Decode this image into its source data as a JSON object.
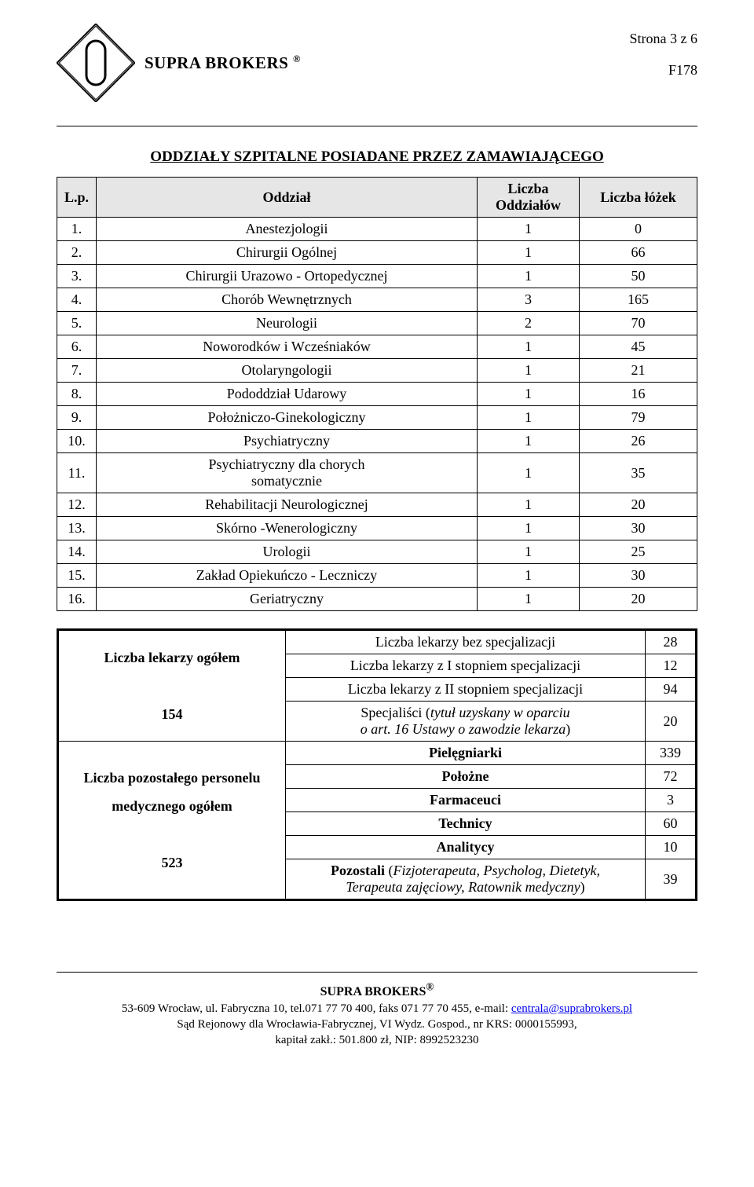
{
  "header": {
    "company_html": "SUPRA BROKERS <sup>®</sup>",
    "page_info": "Strona 3 z 6",
    "code": "F178"
  },
  "section_title": "ODDZIAŁY SZPITALNE POSIADANE PRZEZ ZAMAWIAJĄCEGO",
  "table1": {
    "headers": {
      "lp": "L.p.",
      "name": "Oddział",
      "count": "Liczba\nOddziałów",
      "beds": "Liczba łóżek"
    },
    "rows": [
      {
        "lp": "1.",
        "name": "Anestezjologii",
        "count": "1",
        "beds": "0"
      },
      {
        "lp": "2.",
        "name": "Chirurgii Ogólnej",
        "count": "1",
        "beds": "66"
      },
      {
        "lp": "3.",
        "name": "Chirurgii Urazowo - Ortopedycznej",
        "count": "1",
        "beds": "50"
      },
      {
        "lp": "4.",
        "name": "Chorób Wewnętrznych",
        "count": "3",
        "beds": "165"
      },
      {
        "lp": "5.",
        "name": "Neurologii",
        "count": "2",
        "beds": "70"
      },
      {
        "lp": "6.",
        "name": "Noworodków i Wcześniaków",
        "count": "1",
        "beds": "45"
      },
      {
        "lp": "7.",
        "name": "Otolaryngologii",
        "count": "1",
        "beds": "21"
      },
      {
        "lp": "8.",
        "name": "Pododdział Udarowy",
        "count": "1",
        "beds": "16"
      },
      {
        "lp": "9.",
        "name": "Położniczo-Ginekologiczny",
        "count": "1",
        "beds": "79"
      },
      {
        "lp": "10.",
        "name": "Psychiatryczny",
        "count": "1",
        "beds": "26"
      },
      {
        "lp": "11.",
        "name": "Psychiatryczny dla chorych\nsomatycznie",
        "count": "1",
        "beds": "35"
      },
      {
        "lp": "12.",
        "name": "Rehabilitacji Neurologicznej",
        "count": "1",
        "beds": "20"
      },
      {
        "lp": "13.",
        "name": "Skórno -Wenerologiczny",
        "count": "1",
        "beds": "30"
      },
      {
        "lp": "14.",
        "name": "Urologii",
        "count": "1",
        "beds": "25"
      },
      {
        "lp": "15.",
        "name": "Zakład Opiekuńczo - Leczniczy",
        "count": "1",
        "beds": "30"
      },
      {
        "lp": "16.",
        "name": "Geriatryczny",
        "count": "1",
        "beds": "20"
      }
    ]
  },
  "table2": {
    "group1": {
      "left_html": "Liczba lekarzy ogółem<br><br>154",
      "rows": [
        {
          "label": "Liczba lekarzy bez specjalizacji",
          "val": "28"
        },
        {
          "label": "Liczba lekarzy z I stopniem specjalizacji",
          "val": "12"
        },
        {
          "label": "Liczba lekarzy z II stopniem specjalizacji",
          "val": "94"
        },
        {
          "label_html": "Specjaliści (<span class=\"italic\">tytuł uzyskany w oparciu<br>o art. 16 Ustawy o zawodzie lekarza</span>)",
          "val": "20"
        }
      ]
    },
    "group2": {
      "left_html": "Liczba pozostałego personelu<br>medycznego ogółem<br><br>523",
      "rows": [
        {
          "label_html": "<b>Pielęgniarki</b>",
          "val": "339"
        },
        {
          "label_html": "<b>Położne</b>",
          "val": "72"
        },
        {
          "label_html": "<b>Farmaceuci</b>",
          "val": "3"
        },
        {
          "label_html": "<b>Technicy</b>",
          "val": "60"
        },
        {
          "label_html": "<b>Analitycy</b>",
          "val": "10"
        },
        {
          "label_html": "<b>Pozostali</b> (<span class=\"italic\">Fizjoterapeuta, Psycholog, Dietetyk,<br>Terapeuta zajęciowy, Ratownik medyczny</span>)",
          "val": "39"
        }
      ]
    }
  },
  "footer": {
    "name_html": "SUPRA BROKERS<sup>®</sup>",
    "line1_pre": "53-609 Wrocław, ul. Fabryczna 10,  tel.071 77 70 400, faks 071 77 70 455, e-mail: ",
    "email": "centrala@suprabrokers.pl",
    "line2": "Sąd Rejonowy dla Wrocławia-Fabrycznej, VI Wydz. Gospod., nr KRS:  0000155993,",
    "line3": "kapitał zakł.: 501.800 zł, NIP: 8992523230"
  }
}
